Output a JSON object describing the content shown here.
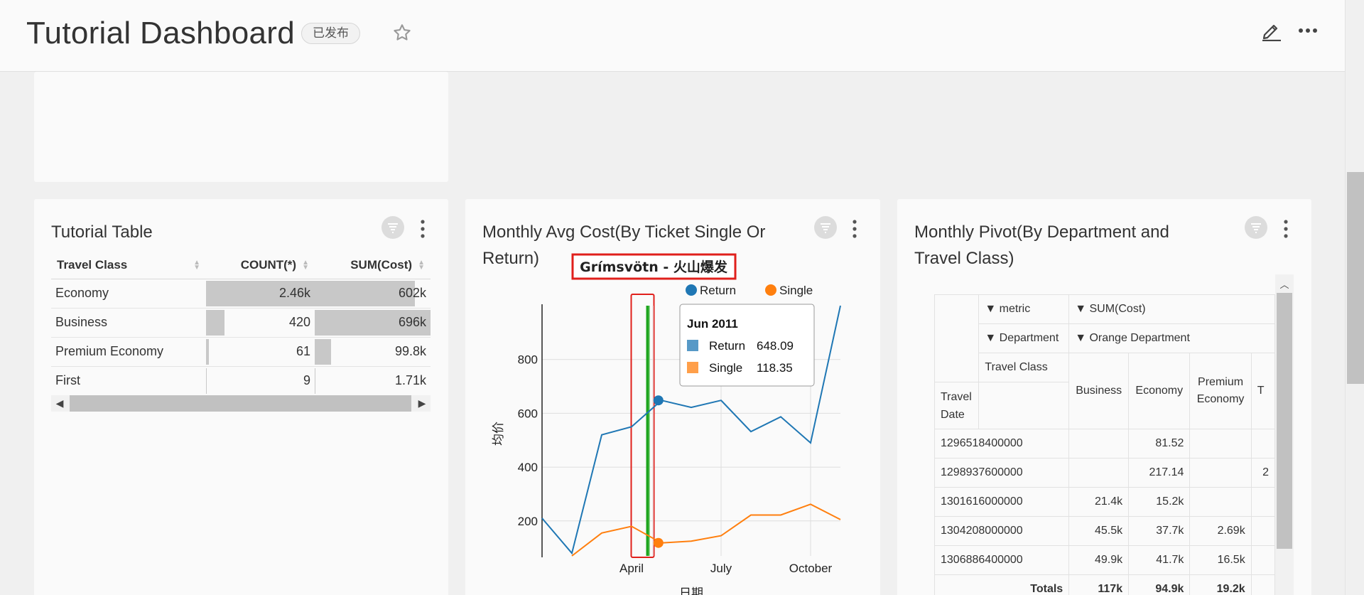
{
  "header": {
    "title": "Tutorial Dashboard",
    "badge": "已发布"
  },
  "table_card": {
    "title": "Tutorial Table",
    "columns": [
      "Travel Class",
      "COUNT(*)",
      "SUM(Cost)"
    ],
    "rows": [
      {
        "label": "Economy",
        "count": "2.46k",
        "sum": "602k",
        "count_frac": 1.0,
        "sum_frac": 0.865
      },
      {
        "label": "Business",
        "count": "420",
        "sum": "696k",
        "count_frac": 0.171,
        "sum_frac": 1.0
      },
      {
        "label": "Premium Economy",
        "count": "61",
        "sum": "99.8k",
        "count_frac": 0.025,
        "sum_frac": 0.143
      },
      {
        "label": "First",
        "count": "9",
        "sum": "1.71k",
        "count_frac": 0.004,
        "sum_frac": 0.002
      }
    ]
  },
  "chart_card": {
    "title": "Monthly Avg Cost(By Ticket Single Or Return)",
    "annotation": "Grímsvötn - 火山爆发",
    "tooltip": {
      "date": "Jun 2011",
      "items": [
        {
          "name": "Return",
          "value": "648.09"
        },
        {
          "name": "Single",
          "value": "118.35"
        }
      ]
    }
  },
  "chart_data": {
    "type": "line",
    "ylabel": "均价",
    "xlabel": "日期",
    "ylim": [
      70,
      1000
    ],
    "x_ticks": [
      "April",
      "July",
      "October"
    ],
    "x_tick_months": [
      3,
      6,
      9
    ],
    "y_ticks": [
      200,
      400,
      600,
      800
    ],
    "legend": "top-right",
    "grid": true,
    "x_months": [
      0,
      1,
      2,
      3,
      4,
      5,
      6,
      7,
      8,
      9,
      10,
      11
    ],
    "series": [
      {
        "name": "Return",
        "color": "#1f77b4",
        "values": [
          210,
          80,
          520,
          550,
          648.09,
          622,
          648,
          532,
          587,
          490,
          1000,
          null
        ]
      },
      {
        "name": "Single",
        "color": "#ff7f0e",
        "values": [
          null,
          70,
          155,
          180,
          118.35,
          125,
          145,
          222,
          222,
          262,
          205,
          null
        ]
      }
    ],
    "highlight_month": 3.75
  },
  "pivot_card": {
    "title": "Monthly Pivot(By Department and Travel Class)",
    "metric_label": "▼ metric",
    "metric_value": "▼ SUM(Cost)",
    "department_label": "▼ Department",
    "department_value": "▼ Orange Department",
    "travel_class_label": "Travel Class",
    "travel_date_label": "Travel Date",
    "columns": [
      "Business",
      "Economy",
      "Premium Economy",
      "T"
    ],
    "rows": [
      {
        "date": "1296518400000",
        "values": [
          "",
          "81.52",
          "",
          ""
        ]
      },
      {
        "date": "1298937600000",
        "values": [
          "",
          "217.14",
          "",
          "2"
        ]
      },
      {
        "date": "1301616000000",
        "values": [
          "21.4k",
          "15.2k",
          "",
          ""
        ]
      },
      {
        "date": "1304208000000",
        "values": [
          "45.5k",
          "37.7k",
          "2.69k",
          ""
        ]
      },
      {
        "date": "1306886400000",
        "values": [
          "49.9k",
          "41.7k",
          "16.5k",
          ""
        ]
      }
    ],
    "totals_label": "Totals",
    "totals": [
      "117k",
      "94.9k",
      "19.2k",
      ""
    ]
  }
}
